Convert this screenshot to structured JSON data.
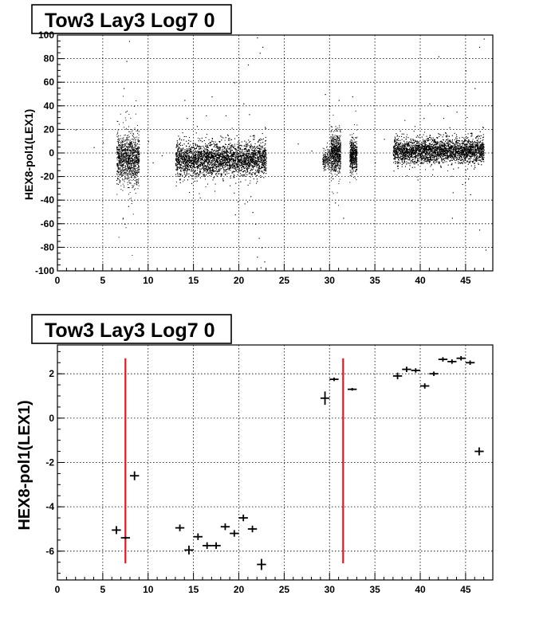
{
  "chart_data": [
    {
      "type": "scatter",
      "title": "Tow3 Lay3 Log7 0",
      "xlabel": "",
      "ylabel": "HEX8-pol1(LEX1)",
      "xlim": [
        0,
        48
      ],
      "ylim": [
        -100,
        100
      ],
      "grid": true,
      "x_tick_labels": [
        "0",
        "5",
        "10",
        "15",
        "20",
        "25",
        "30",
        "35",
        "40",
        "45"
      ],
      "y_tick_labels": [
        "-100",
        "-80",
        "-60",
        "-40",
        "-20",
        "0",
        "20",
        "40",
        "60",
        "80",
        "100"
      ],
      "clusters": [
        {
          "x_range": [
            6.5,
            9.0
          ],
          "y_center": -5,
          "y_spread": 18,
          "density": "high",
          "count": 1200
        },
        {
          "x_range": [
            13.0,
            23.0
          ],
          "y_center": -5,
          "y_spread": 12,
          "density": "high",
          "count": 5200
        },
        {
          "x_range": [
            29.2,
            30.1
          ],
          "y_center": -5,
          "y_spread": 8,
          "density": "low",
          "count": 180
        },
        {
          "x_range": [
            30.1,
            31.2
          ],
          "y_center": 0,
          "y_spread": 14,
          "density": "high",
          "count": 700
        },
        {
          "x_range": [
            32.2,
            33.0
          ],
          "y_center": -2,
          "y_spread": 12,
          "density": "high",
          "count": 500
        },
        {
          "x_range": [
            37.0,
            47.0
          ],
          "y_center": 2,
          "y_spread": 9,
          "density": "high",
          "count": 5200
        }
      ],
      "outliers": [
        {
          "x": 7.3,
          "y": 55
        },
        {
          "x": 7.6,
          "y": 78
        },
        {
          "x": 7.9,
          "y": 95
        },
        {
          "x": 7.5,
          "y": 35
        },
        {
          "x": 7.2,
          "y": -55
        },
        {
          "x": 7.8,
          "y": -45
        },
        {
          "x": 7.4,
          "y": -60
        },
        {
          "x": 14.0,
          "y": 45
        },
        {
          "x": 17.0,
          "y": 48
        },
        {
          "x": 19.5,
          "y": 60
        },
        {
          "x": 21.0,
          "y": 75
        },
        {
          "x": 22.0,
          "y": 98
        },
        {
          "x": 22.3,
          "y": 85
        },
        {
          "x": 22.6,
          "y": 90
        },
        {
          "x": 20.5,
          "y": 42
        },
        {
          "x": 21.8,
          "y": -60
        },
        {
          "x": 22.2,
          "y": -72
        },
        {
          "x": 22.5,
          "y": -80
        },
        {
          "x": 22.0,
          "y": -88
        },
        {
          "x": 22.8,
          "y": -92
        },
        {
          "x": 21.5,
          "y": -50
        },
        {
          "x": 22.4,
          "y": -97
        },
        {
          "x": 29.5,
          "y": 50
        },
        {
          "x": 30.0,
          "y": 40
        },
        {
          "x": 31.0,
          "y": 45
        },
        {
          "x": 32.5,
          "y": 48
        },
        {
          "x": 30.6,
          "y": -42
        },
        {
          "x": 31.5,
          "y": -55
        },
        {
          "x": 41.0,
          "y": 42
        },
        {
          "x": 45.0,
          "y": 70
        },
        {
          "x": 46.0,
          "y": 55
        },
        {
          "x": 43.0,
          "y": 40
        },
        {
          "x": 44.0,
          "y": 35
        },
        {
          "x": 46.5,
          "y": 90
        },
        {
          "x": 42.0,
          "y": 82
        },
        {
          "x": 40.0,
          "y": 65
        },
        {
          "x": 39.0,
          "y": -40
        },
        {
          "x": 45.5,
          "y": -35
        },
        {
          "x": 43.5,
          "y": -55
        },
        {
          "x": 46.5,
          "y": -65
        },
        {
          "x": 47.0,
          "y": 97
        },
        {
          "x": 47.2,
          "y": -82
        },
        {
          "x": 2.0,
          "y": 20
        },
        {
          "x": 4.0,
          "y": 5
        },
        {
          "x": 5.0,
          "y": 9
        },
        {
          "x": 10.0,
          "y": 10
        },
        {
          "x": 11.5,
          "y": -2
        },
        {
          "x": 26.5,
          "y": 8
        },
        {
          "x": 28.0,
          "y": 2
        },
        {
          "x": 35.0,
          "y": -8
        },
        {
          "x": 36.0,
          "y": 12
        },
        {
          "x": 10.5,
          "y": -8
        }
      ]
    },
    {
      "type": "scatter",
      "title": "Tow3 Lay3 Log7 0",
      "xlabel": "",
      "ylabel": "HEX8-pol1(LEX1)",
      "xlim": [
        0,
        48
      ],
      "ylim": [
        -7.3,
        3.3
      ],
      "grid": true,
      "x_tick_labels": [
        "0",
        "5",
        "10",
        "15",
        "20",
        "25",
        "30",
        "35",
        "40",
        "45"
      ],
      "y_tick_labels": [
        "-6",
        "-4",
        "-2",
        "0",
        "2"
      ],
      "points": [
        {
          "x": 6.5,
          "y": -5.05,
          "xerr": 0.5,
          "yerr": 0.18
        },
        {
          "x": 7.5,
          "y": -5.4,
          "xerr": 0.5,
          "yerr": 0.05
        },
        {
          "x": 8.5,
          "y": -2.6,
          "xerr": 0.5,
          "yerr": 0.2
        },
        {
          "x": 13.5,
          "y": -4.95,
          "xerr": 0.5,
          "yerr": 0.15
        },
        {
          "x": 14.5,
          "y": -5.95,
          "xerr": 0.5,
          "yerr": 0.2
        },
        {
          "x": 15.5,
          "y": -5.35,
          "xerr": 0.5,
          "yerr": 0.15
        },
        {
          "x": 16.5,
          "y": -5.75,
          "xerr": 0.5,
          "yerr": 0.15
        },
        {
          "x": 17.5,
          "y": -5.75,
          "xerr": 0.5,
          "yerr": 0.15
        },
        {
          "x": 18.5,
          "y": -4.9,
          "xerr": 0.5,
          "yerr": 0.15
        },
        {
          "x": 19.5,
          "y": -5.2,
          "xerr": 0.5,
          "yerr": 0.15
        },
        {
          "x": 20.5,
          "y": -4.5,
          "xerr": 0.5,
          "yerr": 0.15
        },
        {
          "x": 21.5,
          "y": -5.0,
          "xerr": 0.5,
          "yerr": 0.15
        },
        {
          "x": 22.5,
          "y": -6.6,
          "xerr": 0.5,
          "yerr": 0.25
        },
        {
          "x": 29.5,
          "y": 0.9,
          "xerr": 0.5,
          "yerr": 0.3
        },
        {
          "x": 30.5,
          "y": 1.75,
          "xerr": 0.5,
          "yerr": 0.08
        },
        {
          "x": 32.5,
          "y": 1.3,
          "xerr": 0.5,
          "yerr": 0.06
        },
        {
          "x": 37.5,
          "y": 1.9,
          "xerr": 0.5,
          "yerr": 0.15
        },
        {
          "x": 38.5,
          "y": 2.2,
          "xerr": 0.5,
          "yerr": 0.12
        },
        {
          "x": 39.5,
          "y": 2.15,
          "xerr": 0.5,
          "yerr": 0.1
        },
        {
          "x": 40.5,
          "y": 1.45,
          "xerr": 0.5,
          "yerr": 0.12
        },
        {
          "x": 41.5,
          "y": 2.0,
          "xerr": 0.5,
          "yerr": 0.1
        },
        {
          "x": 42.5,
          "y": 2.65,
          "xerr": 0.5,
          "yerr": 0.1
        },
        {
          "x": 43.5,
          "y": 2.55,
          "xerr": 0.5,
          "yerr": 0.1
        },
        {
          "x": 44.5,
          "y": 2.7,
          "xerr": 0.5,
          "yerr": 0.1
        },
        {
          "x": 45.5,
          "y": 2.5,
          "xerr": 0.5,
          "yerr": 0.1
        },
        {
          "x": 46.5,
          "y": -1.5,
          "xerr": 0.5,
          "yerr": 0.18
        }
      ],
      "vertical_lines": [
        {
          "x": 7.5,
          "y_range": [
            -6.55,
            2.7
          ],
          "color": "#e8151b"
        },
        {
          "x": 31.5,
          "y_range": [
            -6.55,
            2.7
          ],
          "color": "#e8151b"
        }
      ]
    }
  ]
}
